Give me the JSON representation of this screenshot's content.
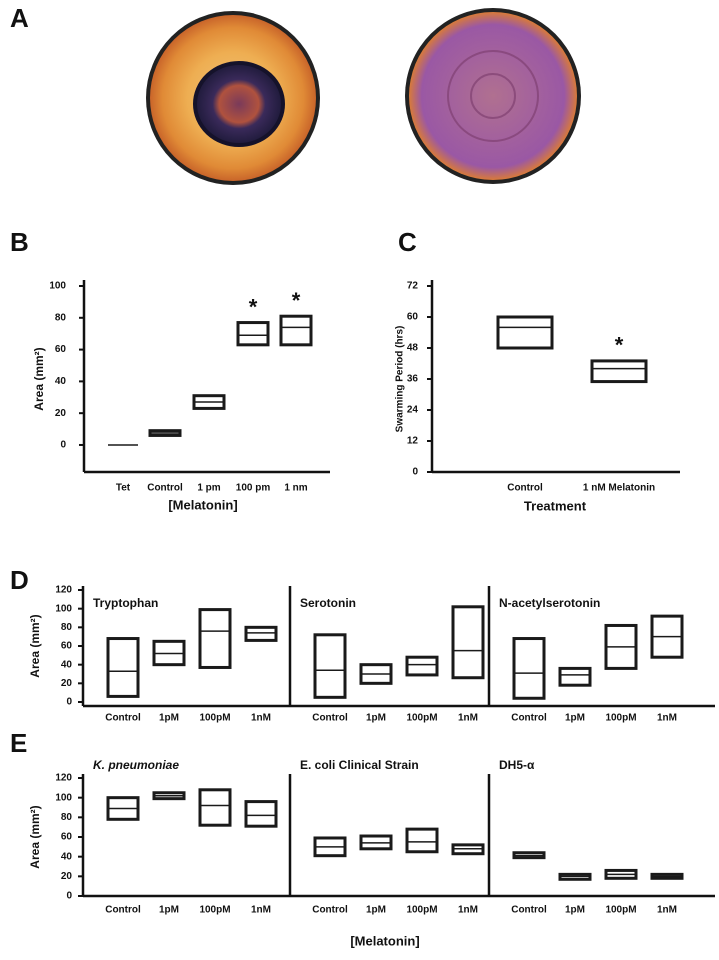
{
  "chart_data": [
    {
      "type": "image",
      "panel": "A"
    },
    {
      "type": "box",
      "panel": "B",
      "y_label": "Area (mm²)",
      "x_label": "[Melatonin]",
      "categories": [
        "Tet",
        "Control",
        "1 pm",
        "100 pm",
        "1 nm"
      ],
      "low": [
        0,
        6,
        23,
        63,
        63
      ],
      "median": [
        0,
        7.5,
        27,
        69,
        74
      ],
      "high": [
        0,
        9,
        31,
        77,
        81
      ],
      "significance": [
        null,
        null,
        null,
        "*",
        "*"
      ],
      "ylim": [
        -17,
        100
      ],
      "yticks": [
        0,
        20,
        40,
        60,
        80,
        100
      ],
      "color": "#1a1a1a"
    },
    {
      "type": "box",
      "panel": "C",
      "y_label": "Swarming Period (hrs)",
      "x_label": "Treatment",
      "categories": [
        "Control",
        "1 nM Melatonin"
      ],
      "low": [
        48,
        35
      ],
      "median": [
        56,
        40
      ],
      "high": [
        60,
        43
      ],
      "significance": [
        null,
        "*"
      ],
      "ylim": [
        0,
        72
      ],
      "yticks": [
        0,
        12,
        24,
        36,
        48,
        60,
        72
      ],
      "color": "#1a1a1a"
    },
    {
      "type": "box-grouped",
      "panel": "D",
      "y_label": "Area (mm²)",
      "ylim": [
        0,
        120
      ],
      "yticks": [
        0,
        20,
        40,
        60,
        80,
        100,
        120
      ],
      "color": "#1a1a1a",
      "groups": [
        {
          "name": "Tryptophan",
          "categories": [
            "Control",
            "1pM",
            "100pM",
            "1nM"
          ],
          "low": [
            6,
            40,
            37,
            66
          ],
          "median": [
            33,
            52,
            76,
            74
          ],
          "high": [
            68,
            65,
            99,
            80
          ]
        },
        {
          "name": "Serotonin",
          "categories": [
            "Control",
            "1pM",
            "100pM",
            "1nM"
          ],
          "low": [
            5,
            20,
            29,
            26
          ],
          "median": [
            34,
            30,
            40,
            55
          ],
          "high": [
            72,
            40,
            48,
            102
          ]
        },
        {
          "name": "N-acetylserotonin",
          "categories": [
            "Control",
            "1pM",
            "100pM",
            "1nM"
          ],
          "low": [
            4,
            18,
            36,
            48
          ],
          "median": [
            31,
            29,
            59,
            70
          ],
          "high": [
            68,
            36,
            82,
            92
          ]
        }
      ]
    },
    {
      "type": "box-grouped",
      "panel": "E",
      "y_label": "Area (mm²)",
      "x_label": "[Melatonin]",
      "ylim": [
        0,
        120
      ],
      "yticks": [
        0,
        20,
        40,
        60,
        80,
        100,
        120
      ],
      "color": "#1a1a1a",
      "groups": [
        {
          "name": "K. pneumoniae",
          "italic": true,
          "categories": [
            "Control",
            "1pM",
            "100pM",
            "1nM"
          ],
          "low": [
            78,
            99,
            72,
            71
          ],
          "median": [
            89,
            102,
            92,
            82
          ],
          "high": [
            100,
            105,
            108,
            96
          ]
        },
        {
          "name": "E. coli Clinical Strain",
          "categories": [
            "Control",
            "1pM",
            "100pM",
            "1nM"
          ],
          "low": [
            41,
            48,
            45,
            43
          ],
          "median": [
            50,
            54,
            55,
            48
          ],
          "high": [
            59,
            61,
            68,
            52
          ]
        },
        {
          "name": "DH5-α",
          "categories": [
            "Control",
            "1pM",
            "100pM",
            "1nM"
          ],
          "low": [
            39,
            17,
            18,
            18
          ],
          "median": [
            41,
            20,
            22,
            20
          ],
          "high": [
            44,
            22,
            26,
            22
          ]
        }
      ]
    }
  ]
}
